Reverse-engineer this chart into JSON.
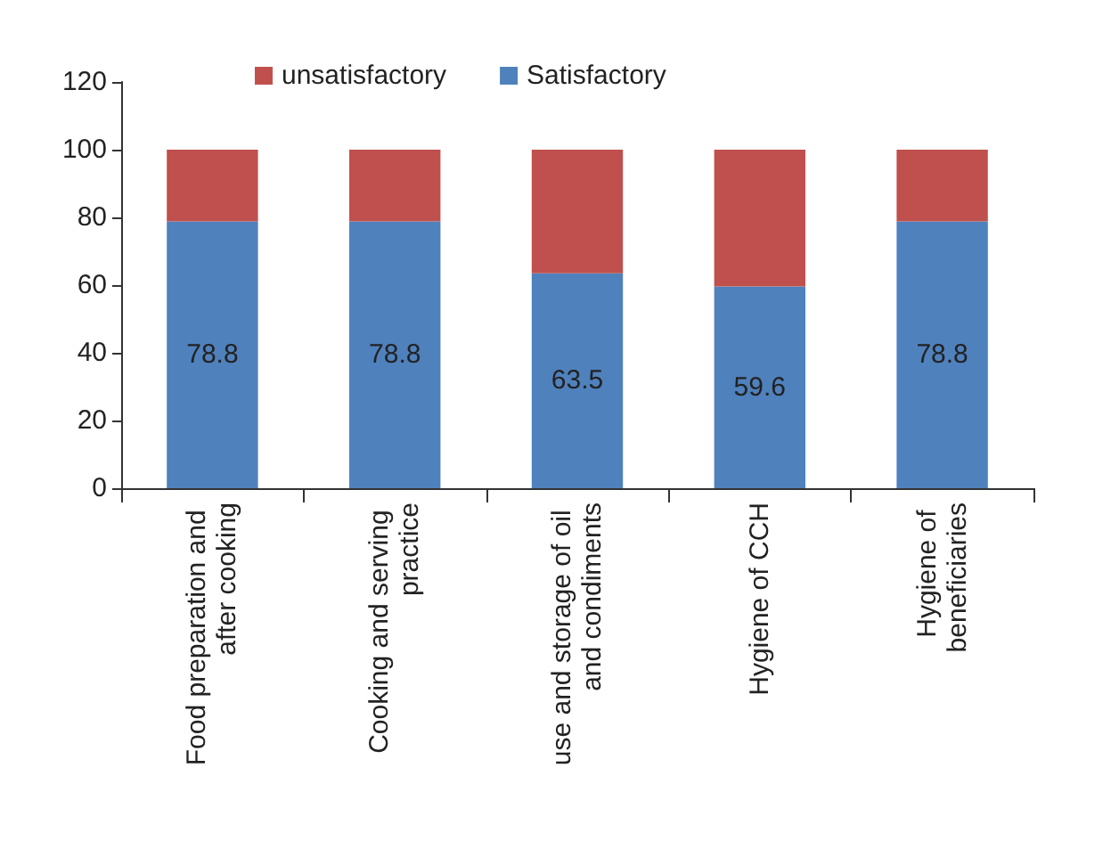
{
  "chart_data": {
    "type": "bar",
    "stacked": true,
    "categories": [
      "Food preparation and after cooking",
      "Cooking and serving practice",
      "use and storage of oil and condiments",
      "Hygiene of CCH",
      "Hygiene of beneficiaries"
    ],
    "series": [
      {
        "name": "Satisfactory",
        "color": "#4f81bd",
        "values": [
          78.8,
          78.8,
          63.5,
          59.6,
          78.8
        ],
        "value_labels": [
          "78.8",
          "78.8",
          "63.5",
          "59.6",
          "78.8"
        ]
      },
      {
        "name": "unsatisfactory",
        "color": "#c0504d",
        "values": [
          21.2,
          21.2,
          36.5,
          40.4,
          21.2
        ]
      }
    ],
    "ylim": [
      0,
      120
    ],
    "yticks": [
      0,
      20,
      40,
      60,
      80,
      100,
      120
    ],
    "grid": false,
    "legend": "top"
  }
}
